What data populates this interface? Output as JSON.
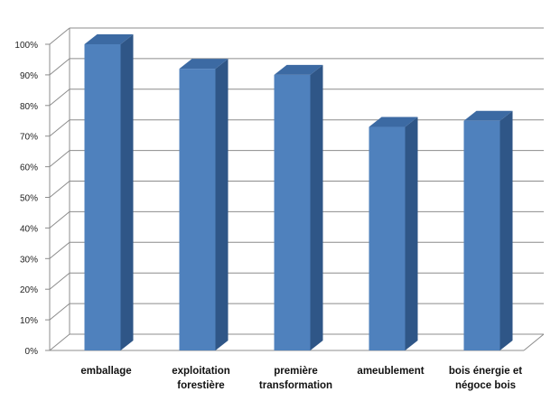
{
  "chart_data": {
    "type": "bar",
    "categories": [
      [
        "emballage"
      ],
      [
        "exploitation",
        "forestière"
      ],
      [
        "première",
        "transformation"
      ],
      [
        "ameublement"
      ],
      [
        "bois énergie et",
        "négoce bois"
      ]
    ],
    "values": [
      100,
      92,
      90,
      73,
      75
    ],
    "ylim": [
      0,
      100
    ],
    "y_ticks": [
      "0%",
      "10%",
      "20%",
      "30%",
      "40%",
      "50%",
      "60%",
      "70%",
      "80%",
      "90%",
      "100%"
    ],
    "grid": true,
    "style": "3d-column",
    "colors": {
      "bar_front": "#4f81bd",
      "bar_side": "#2f5687",
      "bar_top": "#3c6aa3",
      "grid": "#8c8c8c",
      "wall": "#ffffff"
    }
  }
}
